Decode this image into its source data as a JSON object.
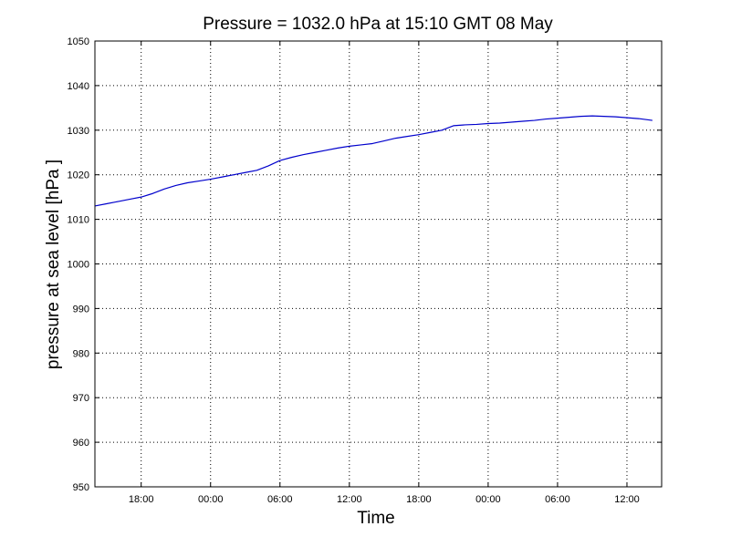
{
  "chart_data": {
    "type": "line",
    "title": "Pressure = 1032.0 hPa at 15:10 GMT 08 May",
    "xlabel": "Time",
    "ylabel": "pressure at sea level [hPa ]",
    "x_unit": "hours",
    "xlim": [
      14.0,
      63.0
    ],
    "ylim": [
      950,
      1050
    ],
    "x_ticks": [
      18,
      24,
      30,
      36,
      42,
      48,
      54,
      60
    ],
    "x_tick_labels": [
      "18:00",
      "00:00",
      "06:00",
      "12:00",
      "18:00",
      "00:00",
      "06:00",
      "12:00"
    ],
    "y_ticks": [
      950,
      960,
      970,
      980,
      990,
      1000,
      1010,
      1020,
      1030,
      1040,
      1050
    ],
    "y_tick_labels": [
      "950",
      "960",
      "970",
      "980",
      "990",
      "1000",
      "1010",
      "1020",
      "1030",
      "1040",
      "1050"
    ],
    "grid": true,
    "legend": "none",
    "line_color": "#0000cc",
    "series": [
      {
        "x": [
          14.0,
          15.0,
          16.0,
          17.0,
          18.0,
          19.0,
          20.0,
          21.0,
          22.0,
          23.0,
          24.0,
          25.0,
          26.0,
          27.0,
          28.0,
          29.0,
          30.0,
          31.0,
          32.0,
          33.0,
          34.0,
          35.0,
          36.0,
          37.0,
          38.0,
          39.0,
          40.0,
          41.0,
          42.0,
          43.0,
          44.0,
          45.0,
          46.0,
          47.0,
          48.0,
          49.0,
          50.0,
          51.0,
          52.0,
          53.0,
          54.0,
          55.0,
          56.0,
          57.0,
          58.0,
          59.0,
          60.0,
          61.0,
          62.2
        ],
        "values": [
          1013.0,
          1013.5,
          1014.0,
          1014.5,
          1015.0,
          1015.8,
          1016.8,
          1017.6,
          1018.2,
          1018.6,
          1019.0,
          1019.5,
          1020.0,
          1020.5,
          1021.0,
          1022.0,
          1023.2,
          1023.9,
          1024.5,
          1025.0,
          1025.5,
          1026.0,
          1026.4,
          1026.7,
          1027.0,
          1027.6,
          1028.2,
          1028.6,
          1029.0,
          1029.5,
          1030.0,
          1031.0,
          1031.2,
          1031.3,
          1031.5,
          1031.6,
          1031.8,
          1032.0,
          1032.2,
          1032.5,
          1032.7,
          1032.9,
          1033.1,
          1033.2,
          1033.1,
          1033.0,
          1032.8,
          1032.6,
          1032.2
        ]
      }
    ]
  }
}
